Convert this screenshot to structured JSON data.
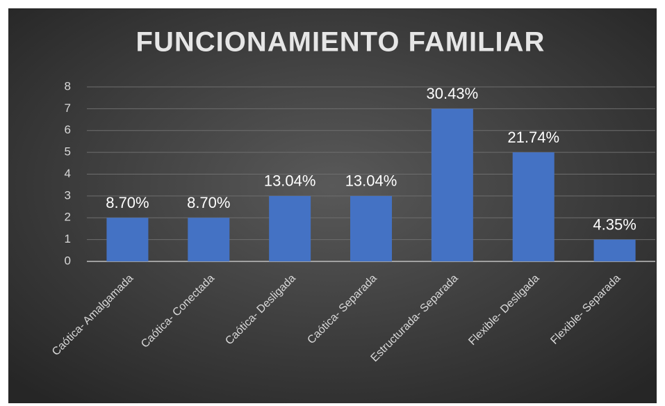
{
  "chart_data": {
    "type": "bar",
    "title": "FUNCIONAMIENTO FAMILIAR",
    "categories": [
      "Caótica- Amalgamada",
      "Caótica- Conectada",
      "Caótica- Desligada",
      "Caótica- Separada",
      "Estructurada- Separada",
      "Flexible- Desligada",
      "Flexible- Separada"
    ],
    "values": [
      2,
      2,
      3,
      3,
      7,
      5,
      1
    ],
    "value_labels": [
      "8.70%",
      "8.70%",
      "13.04%",
      "13.04%",
      "30.43%",
      "21.74%",
      "4.35%"
    ],
    "color": "#4472c4",
    "ylim": [
      0,
      8
    ],
    "yticks": [
      0,
      1,
      2,
      3,
      4,
      5,
      6,
      7,
      8
    ],
    "grid": true
  }
}
